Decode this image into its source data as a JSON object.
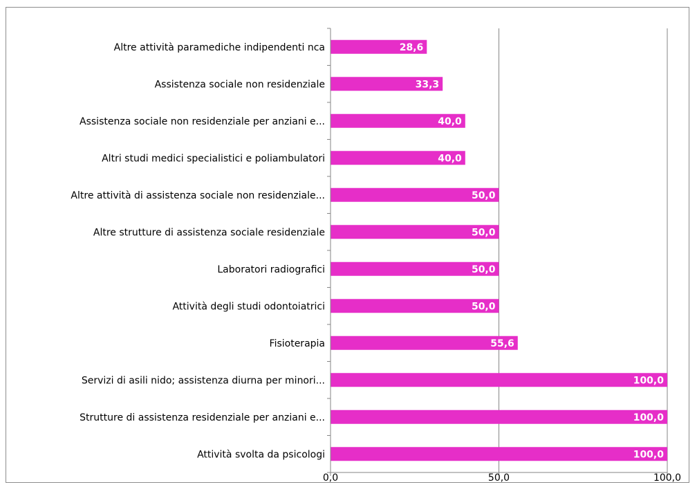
{
  "chart_data": {
    "type": "bar",
    "orientation": "horizontal",
    "categories": [
      "Altre attività paramediche indipendenti nca",
      "Assistenza sociale non residenziale",
      "Assistenza sociale non residenziale per anziani e...",
      "Altri studi medici specialistici e poliambulatori",
      "Altre attività di assistenza sociale non residenziale...",
      "Altre strutture di assistenza sociale residenziale",
      "Laboratori radiografici",
      "Attività degli studi odontoiatrici",
      "Fisioterapia",
      "Servizi di asili nido; assistenza diurna per minori...",
      "Strutture di assistenza residenziale per anziani e...",
      "Attività svolta da psicologi"
    ],
    "values": [
      28.6,
      33.3,
      40.0,
      40.0,
      50.0,
      50.0,
      50.0,
      50.0,
      55.6,
      100.0,
      100.0,
      100.0
    ],
    "value_labels": [
      "28,6",
      "33,3",
      "40,0",
      "40,0",
      "50,0",
      "50,0",
      "50,0",
      "50,0",
      "55,6",
      "100,0",
      "100,0",
      "100,0"
    ],
    "xlim": [
      0,
      100
    ],
    "x_ticks": [
      0,
      50,
      100
    ],
    "x_tick_labels": [
      "0,0",
      "50,0",
      "100,0"
    ],
    "grid": true,
    "bar_color": "#e62ec8",
    "axis_color": "#868686"
  }
}
